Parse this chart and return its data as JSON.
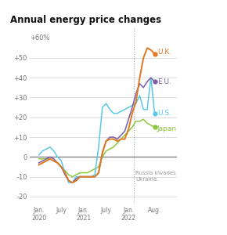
{
  "title": "Annual energy price changes",
  "ylabel_top": "+60%",
  "yticks": [
    -20,
    -10,
    0,
    10,
    20,
    30,
    40,
    50
  ],
  "ytick_labels": [
    "-20",
    "-10",
    "0",
    "+10",
    "+20",
    "+30",
    "+40",
    "+50"
  ],
  "ylim": [
    -24,
    65
  ],
  "annotation": "Russia invades\nUkraine.",
  "vline_x": 25.5,
  "series_UK": {
    "color": "#E07820",
    "label": "U.K."
  },
  "series_EU": {
    "color": "#7B5EA7",
    "label": "E.U."
  },
  "series_US": {
    "color": "#5BC8E8",
    "label": "U.S."
  },
  "series_Japan": {
    "color": "#8DC63F",
    "label": "Japan"
  },
  "xtick_positions": [
    0,
    6,
    12,
    18,
    24,
    31
  ],
  "xtick_labels": [
    "Jan.\n2020",
    "July",
    "Jan.\n2021",
    "July",
    "Jan.\n2022",
    "Aug."
  ],
  "background_color": "#FFFFFF",
  "grid_color": "#D8D8D8",
  "zero_line_color": "#777777",
  "UK_data": [
    -4,
    -3,
    -2,
    -1,
    -2,
    -3,
    -5,
    -8,
    -12,
    -13,
    -12,
    -10,
    -10,
    -10,
    -10,
    -10,
    -8,
    2,
    8,
    9,
    9,
    8,
    9,
    9,
    14,
    22,
    28,
    40,
    50,
    55,
    54,
    52
  ],
  "EU_data": [
    -3,
    -2,
    -1,
    0,
    -1,
    -3,
    -5,
    -9,
    -12,
    -13,
    -11,
    -10,
    -10,
    -10,
    -10,
    -10,
    -8,
    2,
    8,
    10,
    10,
    9,
    11,
    13,
    19,
    25,
    32,
    37,
    35,
    38,
    40,
    38
  ],
  "US_data": [
    1,
    3,
    4,
    5,
    3,
    0,
    -2,
    -8,
    -13,
    -13,
    -10,
    -10,
    -10,
    -10,
    -10,
    -9,
    5,
    25,
    27,
    24,
    22,
    22,
    23,
    24,
    25,
    26,
    27,
    31,
    24,
    24,
    40,
    22
  ],
  "Japan_data": [
    -1,
    -1,
    -1,
    -1,
    -2,
    -3,
    -5,
    -7,
    -9,
    -10,
    -9,
    -8,
    -8,
    -8,
    -7,
    -6,
    -5,
    0,
    3,
    4,
    5,
    7,
    9,
    11,
    13,
    15,
    18,
    18,
    19,
    17,
    16,
    15
  ]
}
